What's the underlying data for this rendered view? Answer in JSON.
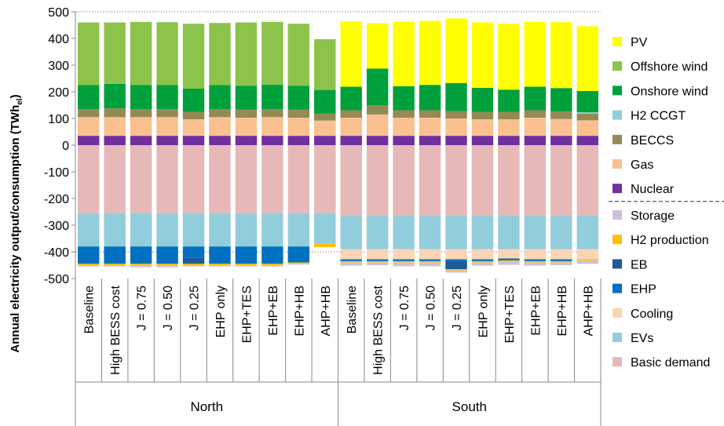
{
  "chart_data": {
    "type": "bar",
    "stacked": true,
    "ylabel": "Annual electricity output/consumption",
    "ylabel_unit_main": "TWh",
    "ylabel_unit_sub": "el",
    "ylim": [
      -500,
      500
    ],
    "yticks": [
      500,
      400,
      300,
      200,
      100,
      0,
      -100,
      -200,
      -300,
      -400,
      -500
    ],
    "gridlines": {
      "dotted_at": [
        500,
        -400
      ]
    },
    "categories": [
      "Baseline",
      "High BESS cost",
      "J = 0.75",
      "J = 0.50",
      "J = 0.25",
      "EHP only",
      "EHP+TES",
      "EHP+EB",
      "EHP+HB",
      "AHP+HB",
      "Baseline",
      "High BESS cost",
      "J = 0.75",
      "J = 0.50",
      "J = 0.25",
      "EHP only",
      "EHP+TES",
      "EHP+EB",
      "EHP+HB",
      "AHP+HB"
    ],
    "groups": [
      {
        "name": "North",
        "start": 0,
        "count": 10
      },
      {
        "name": "South",
        "start": 10,
        "count": 10
      }
    ],
    "supply_series": [
      {
        "name": "Nuclear",
        "color": "#7030A0",
        "values": [
          35,
          35,
          35,
          35,
          35,
          35,
          35,
          35,
          35,
          35,
          35,
          35,
          35,
          35,
          35,
          35,
          35,
          35,
          35,
          35
        ]
      },
      {
        "name": "Gas",
        "color": "#FAC090",
        "values": [
          70,
          70,
          70,
          70,
          62,
          70,
          68,
          70,
          68,
          57,
          68,
          80,
          68,
          68,
          65,
          62,
          62,
          68,
          63,
          58
        ]
      },
      {
        "name": "BECCS",
        "color": "#948A54",
        "values": [
          30,
          33,
          30,
          30,
          28,
          30,
          30,
          30,
          30,
          27,
          28,
          35,
          28,
          28,
          28,
          28,
          28,
          28,
          28,
          25
        ]
      },
      {
        "name": "H2 CCGT",
        "color": "#92CDDC",
        "values": [
          0,
          0,
          0,
          0,
          0,
          0,
          0,
          0,
          0,
          0,
          0,
          0,
          0,
          0,
          0,
          0,
          0,
          0,
          0,
          5
        ]
      },
      {
        "name": "Onshore wind",
        "color": "#00A03C",
        "values": [
          90,
          92,
          90,
          90,
          87,
          90,
          90,
          92,
          90,
          88,
          88,
          137,
          90,
          95,
          105,
          90,
          83,
          88,
          88,
          80
        ]
      },
      {
        "name": "Offshore wind",
        "color": "#8CC34A",
        "values": [
          235,
          230,
          237,
          236,
          243,
          233,
          237,
          235,
          232,
          190,
          0,
          0,
          0,
          0,
          0,
          0,
          0,
          0,
          0,
          0
        ]
      },
      {
        "name": "PV",
        "color": "#FFFF00",
        "values": [
          0,
          0,
          0,
          0,
          0,
          0,
          0,
          0,
          0,
          0,
          245,
          170,
          242,
          240,
          242,
          245,
          248,
          243,
          247,
          243
        ]
      }
    ],
    "demand_series": [
      {
        "name": "Basic demand",
        "color": "#E6B9B8",
        "values": [
          255,
          255,
          255,
          255,
          255,
          255,
          255,
          255,
          255,
          255,
          265,
          265,
          265,
          265,
          265,
          265,
          265,
          265,
          265,
          265
        ]
      },
      {
        "name": "EVs",
        "color": "#92CDDC",
        "values": [
          125,
          125,
          125,
          125,
          125,
          125,
          125,
          125,
          125,
          115,
          125,
          125,
          125,
          125,
          125,
          125,
          125,
          125,
          125,
          125
        ]
      },
      {
        "name": "Cooling",
        "color": "#FAD5B5",
        "values": [
          0,
          0,
          0,
          0,
          0,
          0,
          0,
          0,
          0,
          0,
          38,
          38,
          38,
          38,
          38,
          38,
          35,
          38,
          38,
          38
        ]
      },
      {
        "name": "EHP",
        "color": "#0070C0",
        "values": [
          65,
          65,
          65,
          65,
          43,
          65,
          65,
          65,
          60,
          0,
          7,
          7,
          7,
          7,
          7,
          7,
          7,
          7,
          7,
          0
        ]
      },
      {
        "name": "EB",
        "color": "#1F5A96",
        "values": [
          0,
          0,
          0,
          0,
          22,
          0,
          0,
          0,
          0,
          0,
          0,
          0,
          0,
          0,
          30,
          0,
          0,
          0,
          0,
          0
        ]
      },
      {
        "name": "H2 production",
        "color": "#FFC000",
        "values": [
          5,
          5,
          5,
          5,
          5,
          5,
          5,
          5,
          5,
          12,
          5,
          5,
          5,
          5,
          5,
          5,
          5,
          5,
          5,
          5
        ]
      },
      {
        "name": "Storage",
        "color": "#CCC1DA",
        "values": [
          5,
          5,
          8,
          8,
          5,
          5,
          5,
          5,
          3,
          0,
          12,
          10,
          14,
          14,
          8,
          12,
          12,
          12,
          10,
          12
        ]
      }
    ],
    "legend": {
      "position": "right",
      "supply_items": [
        "PV",
        "Offshore wind",
        "Onshore wind",
        "H2 CCGT",
        "BECCS",
        "Gas",
        "Nuclear"
      ],
      "demand_items": [
        "Storage",
        "H2 production",
        "EB",
        "EHP",
        "Cooling",
        "EVs",
        "Basic demand"
      ]
    }
  }
}
